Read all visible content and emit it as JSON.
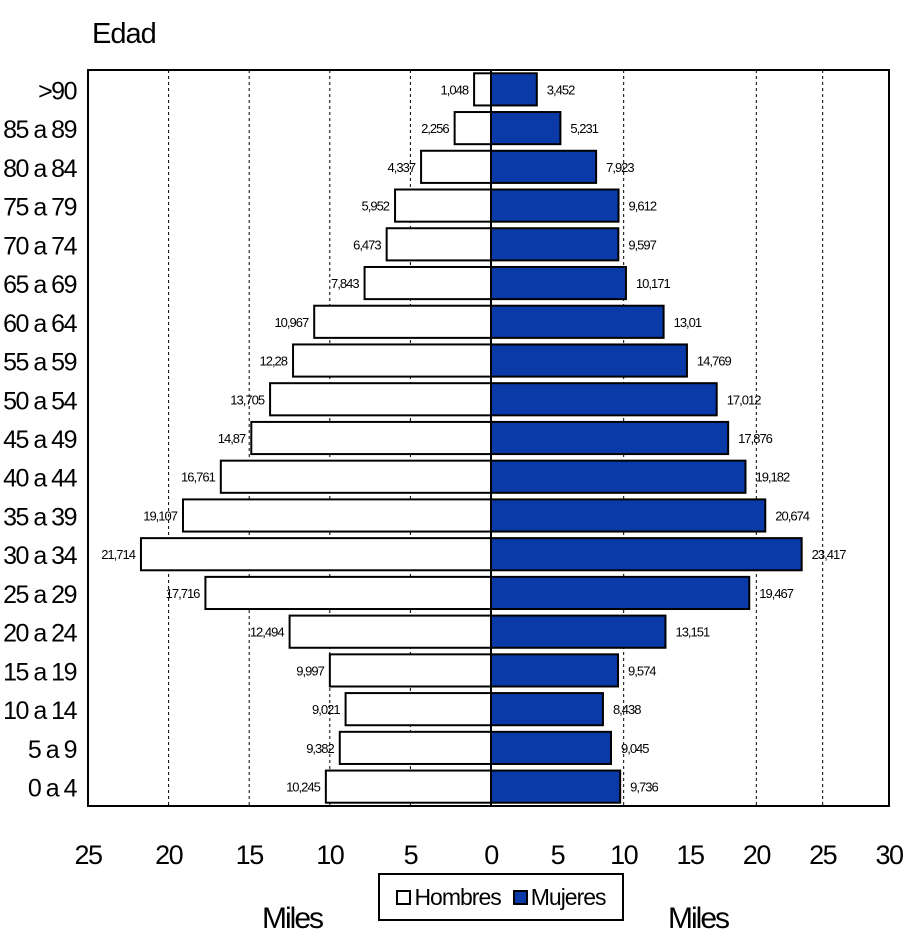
{
  "chart_data": {
    "type": "bar",
    "orientation": "horizontal-population-pyramid",
    "title": "Edad",
    "categories": [
      ">90",
      "85 a 89",
      "80 a 84",
      "75 a 79",
      "70 a 74",
      "65 a 69",
      "60 a 64",
      "55 a 59",
      "50 a 54",
      "45 a 49",
      "40 a 44",
      "35 a 39",
      "30 a 34",
      "25 a 29",
      "20 a 24",
      "15 a 19",
      "10 a 14",
      "5 a 9",
      "0 a 4"
    ],
    "series": [
      {
        "name": "Hombres",
        "color": "#ffffff",
        "side": "left",
        "values": [
          1.048,
          2.256,
          4.337,
          5.952,
          6.473,
          7.843,
          10.967,
          12.28,
          13.705,
          14.87,
          16.761,
          19.107,
          21.714,
          17.716,
          12.494,
          9.997,
          9.021,
          9.382,
          10.245
        ],
        "labels": [
          "1,048",
          "2,256",
          "4,337",
          "5,952",
          "6,473",
          "7,843",
          "10,967",
          "12,28",
          "13,705",
          "14,87",
          "16,761",
          "19,107",
          "21,714",
          "17,716",
          "12,494",
          "9,997",
          "9,021",
          "9,382",
          "10,245"
        ]
      },
      {
        "name": "Mujeres",
        "color": "#0a3aa8",
        "side": "right",
        "values": [
          3.452,
          5.231,
          7.923,
          9.612,
          9.597,
          10.171,
          13.01,
          14.769,
          17.012,
          17.876,
          19.182,
          20.674,
          23.417,
          19.467,
          13.151,
          9.574,
          8.438,
          9.045,
          9.736
        ],
        "labels": [
          "3,452",
          "5,231",
          "7,923",
          "9,612",
          "9,597",
          "10,171",
          "13,01",
          "14,769",
          "17,012",
          "17,876",
          "19,182",
          "20,674",
          "23,417",
          "19,467",
          "13,151",
          "9,574",
          "8,438",
          "9,045",
          "9,736"
        ]
      }
    ],
    "x_left_ticks": [
      "25",
      "20",
      "15",
      "10",
      "5",
      "0"
    ],
    "x_right_ticks": [
      "5",
      "10",
      "15",
      "20",
      "25",
      "30"
    ],
    "xlim_left": [
      25,
      0
    ],
    "xlim_right": [
      0,
      30
    ],
    "xlabel_left": "Miles",
    "xlabel_right": "Miles",
    "grid": "vertical-dashed",
    "legend_position": "bottom-center"
  }
}
